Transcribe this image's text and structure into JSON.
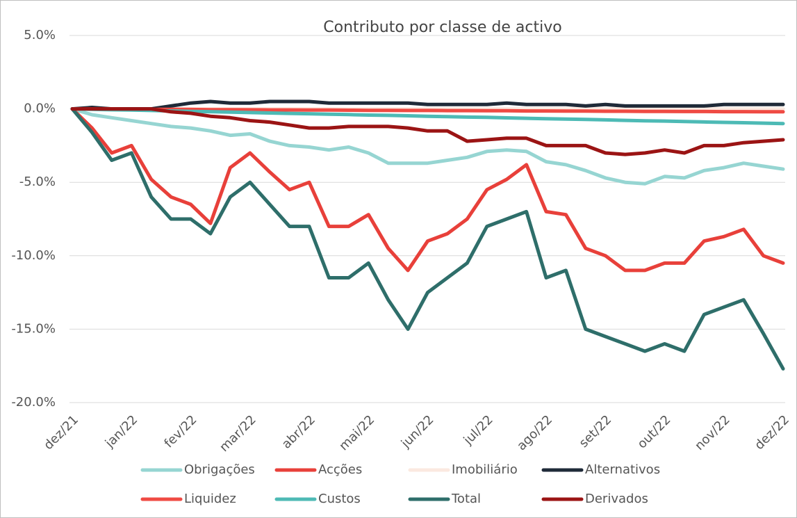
{
  "chart_data": {
    "type": "line",
    "title": "Contributo por classe de activo",
    "categories": [
      "dez/21",
      null,
      null,
      "jan/22",
      null,
      null,
      "fev/22",
      null,
      null,
      "mar/22",
      null,
      null,
      "abr/22",
      null,
      null,
      "mai/22",
      null,
      null,
      "jun/22",
      null,
      null,
      "jul/22",
      null,
      null,
      "ago/22",
      null,
      null,
      "set/22",
      null,
      null,
      "out/22",
      null,
      null,
      "nov/22",
      null,
      null,
      "dez/22"
    ],
    "series": [
      {
        "name": "Obrigações",
        "color": "#96d5d2",
        "values": [
          0,
          -0.4,
          -0.6,
          -0.8,
          -1.0,
          -1.2,
          -1.3,
          -1.5,
          -1.8,
          -1.7,
          -2.2,
          -2.5,
          -2.6,
          -2.8,
          -2.6,
          -3.0,
          -3.7,
          -3.7,
          -3.7,
          -3.5,
          -3.3,
          -2.9,
          -2.8,
          -2.9,
          -3.6,
          -3.8,
          -4.2,
          -4.7,
          -5.0,
          -5.1,
          -4.6,
          -4.7,
          -4.2,
          -4.0,
          -3.7,
          -3.9,
          -4.1
        ]
      },
      {
        "name": "Acções",
        "color": "#e8403a",
        "values": [
          0,
          -1.3,
          -3.0,
          -2.5,
          -4.8,
          -6.0,
          -6.5,
          -7.8,
          -4.0,
          -3.0,
          -4.3,
          -5.5,
          -5.0,
          -8.0,
          -8.0,
          -7.2,
          -9.5,
          -11.0,
          -9.0,
          -8.5,
          -7.5,
          -5.5,
          -4.8,
          -3.8,
          -7.0,
          -7.2,
          -9.5,
          -10.0,
          -11.0,
          -11.0,
          -10.5,
          -10.5,
          -9.0,
          -8.7,
          -8.2,
          -10.0,
          -10.5
        ]
      },
      {
        "name": "Imobiliário",
        "color": "#fbe9e0",
        "values": [
          0,
          0,
          0,
          0,
          0,
          0,
          0,
          0,
          0,
          0,
          0,
          0,
          0,
          0,
          0,
          0,
          0,
          0,
          0,
          0,
          0,
          0,
          0,
          0,
          0,
          0,
          0,
          0,
          0,
          0,
          0,
          0,
          0,
          0,
          0,
          0,
          0
        ]
      },
      {
        "name": "Alternativos",
        "color": "#1f2a38",
        "values": [
          0,
          0.1,
          0,
          0,
          0,
          0.2,
          0.4,
          0.5,
          0.4,
          0.4,
          0.5,
          0.5,
          0.5,
          0.4,
          0.4,
          0.4,
          0.4,
          0.4,
          0.3,
          0.3,
          0.3,
          0.3,
          0.4,
          0.3,
          0.3,
          0.3,
          0.2,
          0.3,
          0.2,
          0.2,
          0.2,
          0.2,
          0.2,
          0.3,
          0.3,
          0.3,
          0.3
        ]
      },
      {
        "name": "Liquidez",
        "color": "#ef4a43",
        "values": [
          0,
          0,
          0,
          -0.02,
          -0.03,
          -0.03,
          -0.04,
          -0.05,
          -0.05,
          -0.06,
          -0.07,
          -0.07,
          -0.08,
          -0.08,
          -0.09,
          -0.1,
          -0.1,
          -0.11,
          -0.11,
          -0.12,
          -0.12,
          -0.13,
          -0.13,
          -0.14,
          -0.14,
          -0.15,
          -0.15,
          -0.16,
          -0.16,
          -0.17,
          -0.17,
          -0.18,
          -0.18,
          -0.19,
          -0.19,
          -0.2,
          -0.2
        ]
      },
      {
        "name": "Custos",
        "color": "#4dbab5",
        "values": [
          0,
          -0.03,
          -0.06,
          -0.08,
          -0.11,
          -0.14,
          -0.17,
          -0.19,
          -0.22,
          -0.25,
          -0.28,
          -0.31,
          -0.33,
          -0.36,
          -0.39,
          -0.42,
          -0.44,
          -0.47,
          -0.5,
          -0.53,
          -0.56,
          -0.58,
          -0.61,
          -0.64,
          -0.67,
          -0.69,
          -0.72,
          -0.75,
          -0.78,
          -0.81,
          -0.83,
          -0.86,
          -0.89,
          -0.92,
          -0.94,
          -0.97,
          -1.0
        ]
      },
      {
        "name": "Total",
        "color": "#2e6e6a",
        "values": [
          0,
          -1.6,
          -3.5,
          -3.0,
          -6.0,
          -7.5,
          -7.5,
          -8.5,
          -6.0,
          -5.0,
          -6.5,
          -8.0,
          -8.0,
          -11.5,
          -11.5,
          -10.5,
          -13.0,
          -15.0,
          -12.5,
          -11.5,
          -10.5,
          -8.0,
          -7.5,
          -7.0,
          -11.5,
          -11.0,
          -15.0,
          -15.5,
          -16.0,
          -16.5,
          -16.0,
          -16.5,
          -14.0,
          -13.5,
          -13.0,
          -15.3,
          -17.7
        ]
      },
      {
        "name": "Derivados",
        "color": "#9b1414",
        "values": [
          0,
          0,
          0,
          0,
          0,
          -0.2,
          -0.3,
          -0.5,
          -0.6,
          -0.8,
          -0.9,
          -1.1,
          -1.3,
          -1.3,
          -1.2,
          -1.2,
          -1.2,
          -1.3,
          -1.5,
          -1.5,
          -2.2,
          -2.1,
          -2.0,
          -2.0,
          -2.5,
          -2.5,
          -2.5,
          -3.0,
          -3.1,
          -3.0,
          -2.8,
          -3.0,
          -2.5,
          -2.5,
          -2.3,
          -2.2,
          -2.1
        ]
      }
    ],
    "ylim": [
      -20,
      5
    ],
    "yticks": [
      {
        "value": -20,
        "label": "-20.0%"
      },
      {
        "value": -15,
        "label": "-15.0%"
      },
      {
        "value": -10,
        "label": "-10.0%"
      },
      {
        "value": -5,
        "label": "-5.0%"
      },
      {
        "value": 0,
        "label": "0.0%"
      },
      {
        "value": 5,
        "label": "5.0%"
      }
    ],
    "grid": true,
    "legend": "bottom"
  }
}
